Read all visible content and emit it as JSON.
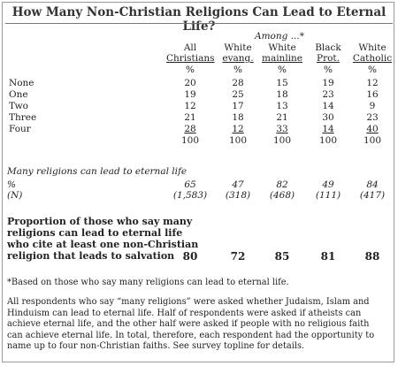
{
  "title": "How Many Non-Christian Religions Can Lead to Eternal Life?",
  "among_label": "Among ...*",
  "columns": [
    {
      "line1": "All",
      "line2": "Christians"
    },
    {
      "line1": "White",
      "line2": "evang."
    },
    {
      "line1": "White",
      "line2": "mainline"
    },
    {
      "line1": "Black",
      "line2": "Prot."
    },
    {
      "line1": "White",
      "line2": "Catholic"
    }
  ],
  "pct_symbol": "%",
  "rows": [
    {
      "label": "None",
      "values": [
        "20",
        "28",
        "15",
        "19",
        "12"
      ]
    },
    {
      "label": "One",
      "values": [
        "19",
        "25",
        "18",
        "23",
        "16"
      ]
    },
    {
      "label": "Two",
      "values": [
        "12",
        "17",
        "13",
        "14",
        "9"
      ]
    },
    {
      "label": "Three",
      "values": [
        "21",
        "18",
        "21",
        "30",
        "23"
      ]
    },
    {
      "label": "Four",
      "values": [
        "28",
        "12",
        "33",
        "14",
        "40"
      ]
    }
  ],
  "totals": [
    "100",
    "100",
    "100",
    "100",
    "100"
  ],
  "many_section": {
    "heading": "Many religions can lead to eternal life",
    "pct_label": "%",
    "pct_values": [
      "65",
      "47",
      "82",
      "49",
      "84"
    ],
    "n_label": "(N)",
    "n_values": [
      "(1,583)",
      "(318)",
      "(468)",
      "(111)",
      "(417)"
    ]
  },
  "proportion": {
    "lines": [
      "Proportion of those who say many",
      "religions can lead to eternal life",
      "who cite at least one non-Christian",
      "religion that leads to salvation"
    ],
    "values": [
      "80",
      "72",
      "85",
      "81",
      "88"
    ]
  },
  "footnote": "*Based on those who say many religions can lead to eternal life.",
  "note": "All respondents who say “many religions” were asked whether Judaism, Islam and Hinduism can lead to eternal life. Half of respondents were asked if atheists can achieve eternal life, and the other half were asked if people with no religious faith can achieve eternal life. In total, therefore, each respondent had the opportunity to name up to four non-Christian faiths. See survey topline for details."
}
